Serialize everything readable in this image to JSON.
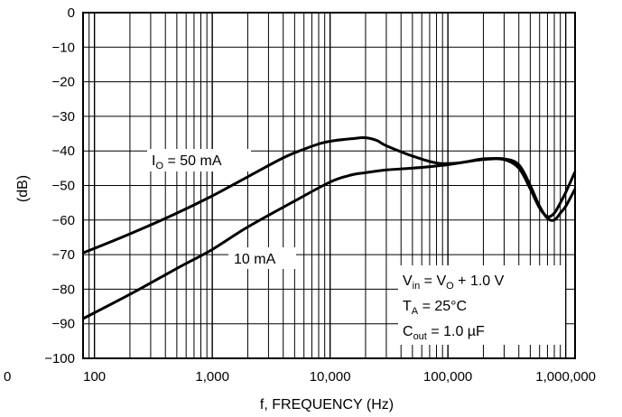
{
  "chart_data": {
    "type": "line",
    "title": "",
    "xlabel": "f, FREQUENCY (Hz)",
    "ylabel": "(dB)",
    "x_scale": "log",
    "xlim": [
      80,
      1200000
    ],
    "ylim": [
      -100,
      0
    ],
    "grid": true,
    "x_ticks": [
      100,
      1000,
      10000,
      100000,
      1000000
    ],
    "x_tick_labels": [
      "100",
      "1,000",
      "10,000",
      "100,000",
      "1,000,000"
    ],
    "left_stray_label": "0",
    "y_ticks": [
      0,
      -10,
      -20,
      -30,
      -40,
      -50,
      -60,
      -70,
      -80,
      -90,
      -100
    ],
    "y_tick_labels": [
      "0",
      "−10",
      "−20",
      "−30",
      "−40",
      "−50",
      "−60",
      "−70",
      "−80",
      "−90",
      "−100"
    ],
    "series": [
      {
        "name": "IO = 50 mA",
        "label_parts": {
          "main": "I",
          "sub": "O",
          "rest": " = 50 mA"
        },
        "x": [
          80,
          200,
          500,
          1000,
          2000,
          4000,
          6000,
          8000,
          10000,
          15000,
          20000,
          25000,
          30000,
          50000,
          80000,
          120000,
          200000,
          300000,
          400000,
          500000,
          600000,
          700000,
          800000,
          900000,
          1000000,
          1200000
        ],
        "y": [
          -69.5,
          -64,
          -58,
          -53,
          -47.5,
          -42,
          -39.5,
          -38,
          -37.2,
          -36.5,
          -36.2,
          -37,
          -38.5,
          -41.5,
          -43.5,
          -43.5,
          -42.5,
          -42.5,
          -45,
          -51,
          -56.5,
          -59,
          -58,
          -55,
          -52,
          -46
        ]
      },
      {
        "name": "10 mA",
        "x": [
          80,
          200,
          500,
          1000,
          2000,
          5000,
          10000,
          15000,
          20000,
          30000,
          50000,
          100000,
          150000,
          200000,
          300000,
          400000,
          500000,
          600000,
          700000,
          800000,
          900000,
          1000000,
          1200000
        ],
        "y": [
          -88.5,
          -81.5,
          -74,
          -68.5,
          -62,
          -54.5,
          -49,
          -47,
          -46.3,
          -45.5,
          -45,
          -44,
          -43,
          -42.3,
          -42.3,
          -44,
          -50,
          -56,
          -59.5,
          -60,
          -58,
          -56,
          -51
        ]
      }
    ],
    "conditions": {
      "line1": {
        "a": "V",
        "a_sub": "in",
        "b": " = V",
        "b_sub": "O",
        "c": " + 1.0 V"
      },
      "line2": {
        "a": "T",
        "a_sub": "A",
        "b": " = 25°C"
      },
      "line3": {
        "a": "C",
        "a_sub": "out",
        "b": " = 1.0 µF"
      }
    }
  }
}
